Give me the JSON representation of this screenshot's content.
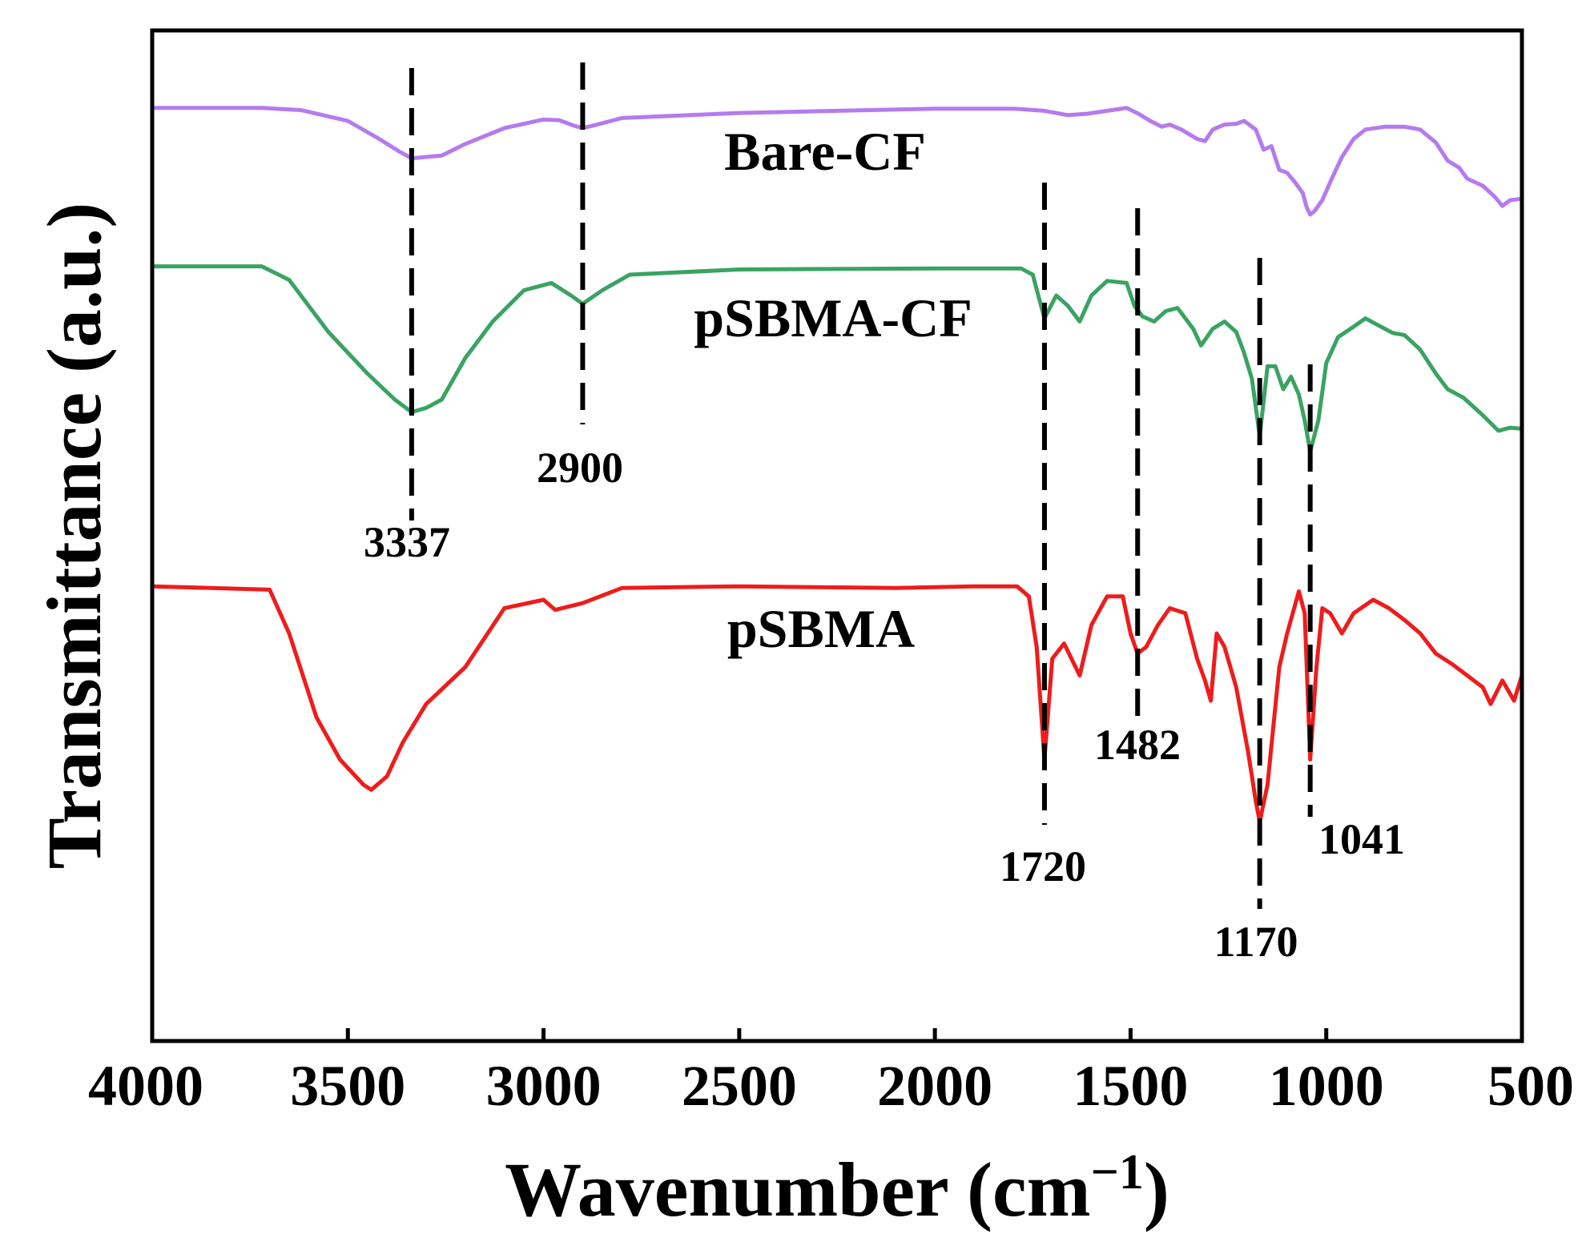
{
  "chart_data": {
    "type": "line",
    "xlabel": "Wavenumber (cm",
    "xlabel_sup": "−1",
    "xlabel_close": ")",
    "ylabel": "Transmittance (a.u.)",
    "xlim": [
      4000,
      500
    ],
    "x_reversed": true,
    "x_ticks": [
      "4000",
      "3500",
      "3000",
      "2500",
      "2000",
      "1500",
      "1000",
      "500"
    ],
    "grid": false,
    "legend": "labels placed beside each curve",
    "series": [
      {
        "name": "Bare-CF",
        "color": "#b57bee",
        "points": [
          [
            4000,
            0.02
          ],
          [
            3720,
            0.02
          ],
          [
            3620,
            0.05
          ],
          [
            3500,
            0.2
          ],
          [
            3420,
            0.45
          ],
          [
            3370,
            0.62
          ],
          [
            3337,
            0.72
          ],
          [
            3300,
            0.7
          ],
          [
            3260,
            0.68
          ],
          [
            3200,
            0.52
          ],
          [
            3100,
            0.3
          ],
          [
            3000,
            0.18
          ],
          [
            2960,
            0.19
          ],
          [
            2920,
            0.27
          ],
          [
            2900,
            0.3
          ],
          [
            2870,
            0.26
          ],
          [
            2800,
            0.16
          ],
          [
            2500,
            0.09
          ],
          [
            2000,
            0.03
          ],
          [
            1800,
            0.03
          ],
          [
            1720,
            0.06
          ],
          [
            1660,
            0.12
          ],
          [
            1610,
            0.1
          ],
          [
            1510,
            0.02
          ],
          [
            1480,
            0.1
          ],
          [
            1450,
            0.2
          ],
          [
            1420,
            0.28
          ],
          [
            1400,
            0.25
          ],
          [
            1370,
            0.32
          ],
          [
            1330,
            0.45
          ],
          [
            1310,
            0.48
          ],
          [
            1290,
            0.32
          ],
          [
            1260,
            0.25
          ],
          [
            1230,
            0.24
          ],
          [
            1210,
            0.2
          ],
          [
            1180,
            0.32
          ],
          [
            1160,
            0.6
          ],
          [
            1140,
            0.55
          ],
          [
            1120,
            0.88
          ],
          [
            1100,
            0.92
          ],
          [
            1080,
            1.05
          ],
          [
            1060,
            1.2
          ],
          [
            1050,
            1.4
          ],
          [
            1041,
            1.5
          ],
          [
            1030,
            1.45
          ],
          [
            1010,
            1.3
          ],
          [
            990,
            1.05
          ],
          [
            960,
            0.7
          ],
          [
            930,
            0.45
          ],
          [
            900,
            0.32
          ],
          [
            850,
            0.28
          ],
          [
            800,
            0.28
          ],
          [
            760,
            0.32
          ],
          [
            720,
            0.5
          ],
          [
            690,
            0.75
          ],
          [
            660,
            0.85
          ],
          [
            640,
            1.0
          ],
          [
            600,
            1.1
          ],
          [
            570,
            1.25
          ],
          [
            550,
            1.38
          ],
          [
            530,
            1.3
          ],
          [
            500,
            1.28
          ]
        ]
      },
      {
        "name": "pSBMA-CF",
        "color": "#3aa363",
        "points": [
          [
            4000,
            0.02
          ],
          [
            3720,
            0.02
          ],
          [
            3650,
            0.15
          ],
          [
            3550,
            0.65
          ],
          [
            3450,
            1.05
          ],
          [
            3380,
            1.3
          ],
          [
            3337,
            1.42
          ],
          [
            3300,
            1.38
          ],
          [
            3260,
            1.3
          ],
          [
            3200,
            0.9
          ],
          [
            3130,
            0.55
          ],
          [
            3050,
            0.25
          ],
          [
            2980,
            0.18
          ],
          [
            2930,
            0.3
          ],
          [
            2900,
            0.38
          ],
          [
            2850,
            0.25
          ],
          [
            2780,
            0.1
          ],
          [
            2500,
            0.05
          ],
          [
            2000,
            0.04
          ],
          [
            1780,
            0.04
          ],
          [
            1750,
            0.1
          ],
          [
            1720,
            0.52
          ],
          [
            1690,
            0.3
          ],
          [
            1660,
            0.4
          ],
          [
            1630,
            0.55
          ],
          [
            1600,
            0.3
          ],
          [
            1560,
            0.16
          ],
          [
            1510,
            0.18
          ],
          [
            1490,
            0.4
          ],
          [
            1470,
            0.5
          ],
          [
            1440,
            0.55
          ],
          [
            1410,
            0.45
          ],
          [
            1380,
            0.42
          ],
          [
            1340,
            0.62
          ],
          [
            1320,
            0.78
          ],
          [
            1290,
            0.62
          ],
          [
            1260,
            0.55
          ],
          [
            1230,
            0.65
          ],
          [
            1210,
            0.85
          ],
          [
            1190,
            1.1
          ],
          [
            1170,
            1.65
          ],
          [
            1150,
            0.98
          ],
          [
            1130,
            0.98
          ],
          [
            1110,
            1.2
          ],
          [
            1090,
            1.08
          ],
          [
            1070,
            1.25
          ],
          [
            1055,
            1.5
          ],
          [
            1041,
            1.8
          ],
          [
            1020,
            1.5
          ],
          [
            1000,
            0.95
          ],
          [
            970,
            0.7
          ],
          [
            930,
            0.6
          ],
          [
            900,
            0.52
          ],
          [
            870,
            0.58
          ],
          [
            830,
            0.66
          ],
          [
            800,
            0.68
          ],
          [
            760,
            0.82
          ],
          [
            720,
            1.05
          ],
          [
            690,
            1.2
          ],
          [
            650,
            1.28
          ],
          [
            600,
            1.45
          ],
          [
            560,
            1.6
          ],
          [
            530,
            1.57
          ],
          [
            500,
            1.58
          ]
        ]
      },
      {
        "name": "pSBMA",
        "color": "#ee1c1c",
        "points": [
          [
            4000,
            0.02
          ],
          [
            3700,
            0.04
          ],
          [
            3650,
            0.3
          ],
          [
            3580,
            0.8
          ],
          [
            3520,
            1.05
          ],
          [
            3460,
            1.2
          ],
          [
            3440,
            1.23
          ],
          [
            3400,
            1.15
          ],
          [
            3360,
            0.95
          ],
          [
            3300,
            0.72
          ],
          [
            3200,
            0.5
          ],
          [
            3100,
            0.15
          ],
          [
            3000,
            0.1
          ],
          [
            2970,
            0.16
          ],
          [
            2900,
            0.12
          ],
          [
            2800,
            0.03
          ],
          [
            2500,
            0.02
          ],
          [
            2100,
            0.03
          ],
          [
            1900,
            0.02
          ],
          [
            1790,
            0.02
          ],
          [
            1760,
            0.08
          ],
          [
            1740,
            0.38
          ],
          [
            1720,
            1.05
          ],
          [
            1700,
            0.45
          ],
          [
            1670,
            0.36
          ],
          [
            1630,
            0.55
          ],
          [
            1600,
            0.25
          ],
          [
            1560,
            0.08
          ],
          [
            1520,
            0.08
          ],
          [
            1500,
            0.3
          ],
          [
            1482,
            0.42
          ],
          [
            1460,
            0.38
          ],
          [
            1430,
            0.25
          ],
          [
            1400,
            0.15
          ],
          [
            1360,
            0.18
          ],
          [
            1330,
            0.45
          ],
          [
            1310,
            0.58
          ],
          [
            1295,
            0.7
          ],
          [
            1280,
            0.3
          ],
          [
            1260,
            0.38
          ],
          [
            1230,
            0.62
          ],
          [
            1200,
            1.0
          ],
          [
            1180,
            1.3
          ],
          [
            1170,
            1.42
          ],
          [
            1150,
            1.2
          ],
          [
            1120,
            0.5
          ],
          [
            1100,
            0.3
          ],
          [
            1070,
            0.05
          ],
          [
            1055,
            0.18
          ],
          [
            1041,
            1.05
          ],
          [
            1025,
            0.5
          ],
          [
            1010,
            0.15
          ],
          [
            990,
            0.18
          ],
          [
            960,
            0.3
          ],
          [
            930,
            0.18
          ],
          [
            880,
            0.1
          ],
          [
            840,
            0.15
          ],
          [
            800,
            0.22
          ],
          [
            760,
            0.3
          ],
          [
            720,
            0.42
          ],
          [
            680,
            0.48
          ],
          [
            640,
            0.55
          ],
          [
            600,
            0.62
          ],
          [
            580,
            0.72
          ],
          [
            550,
            0.58
          ],
          [
            520,
            0.7
          ],
          [
            500,
            0.55
          ]
        ]
      }
    ],
    "reference_lines": [
      {
        "x": 3337,
        "label": "3337"
      },
      {
        "x": 2900,
        "label": "2900"
      },
      {
        "x": 1720,
        "label": "1720"
      },
      {
        "x": 1482,
        "label": "1482"
      },
      {
        "x": 1170,
        "label": "1170"
      },
      {
        "x": 1041,
        "label": "1041"
      }
    ]
  }
}
